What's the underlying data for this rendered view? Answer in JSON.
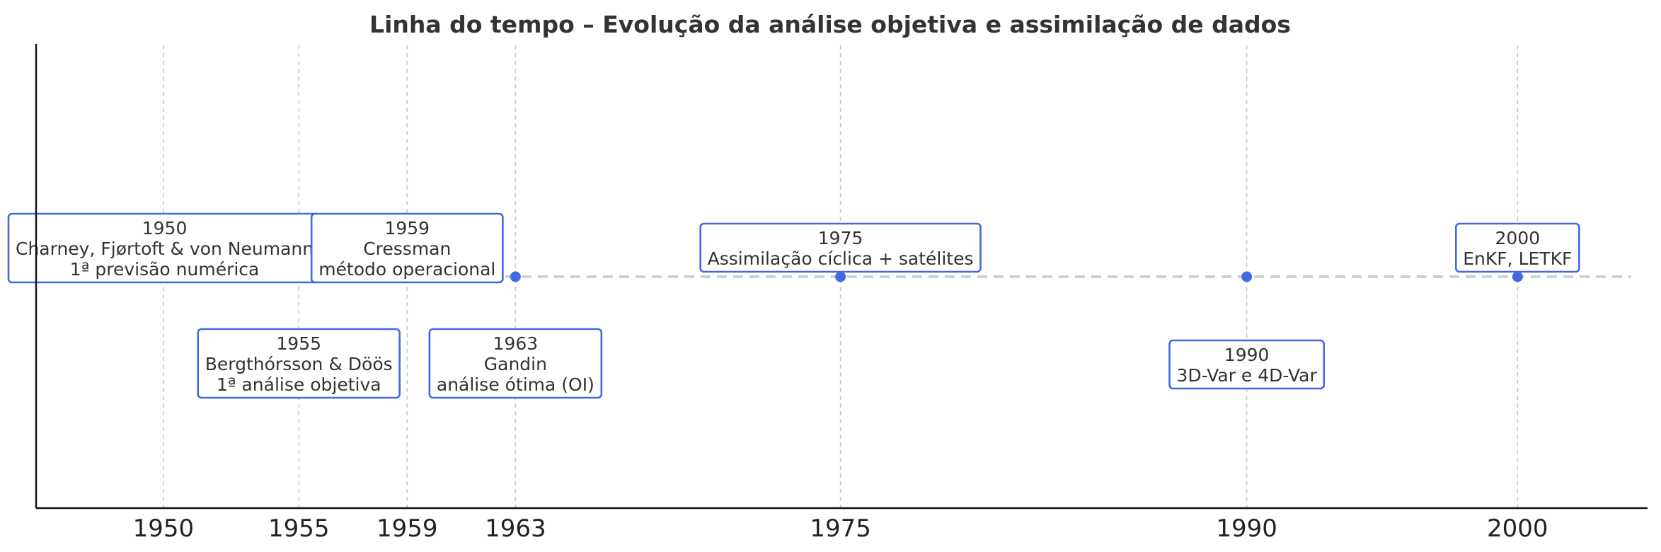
{
  "colors": {
    "accent": "#4169e1",
    "timeline": "#d0d0d0",
    "grid": "#c8c8c8",
    "text": "#333333"
  },
  "chart_data": {
    "type": "timeline",
    "title": "Linha do tempo – Evolução da análise objetiva e assimilação de dados",
    "xlabel": "",
    "ylabel": "",
    "xlim": [
      1945.3,
      2004.8
    ],
    "ticks": [
      "1950",
      "1955",
      "1959",
      "1963",
      "1975",
      "1990",
      "2000"
    ],
    "grid": true,
    "events": [
      {
        "year": 1950,
        "side": "above",
        "lines": [
          "1950",
          "Charney, Fjørtoft & von Neumann",
          "1ª previsão numérica"
        ]
      },
      {
        "year": 1955,
        "side": "below",
        "lines": [
          "1955",
          "Bergthórsson & Döös",
          "1ª análise objetiva"
        ]
      },
      {
        "year": 1959,
        "side": "above",
        "lines": [
          "1959",
          "Cressman",
          "método operacional"
        ]
      },
      {
        "year": 1963,
        "side": "below",
        "lines": [
          "1963",
          "Gandin",
          "análise ótima (OI)"
        ]
      },
      {
        "year": 1975,
        "side": "above",
        "lines": [
          "1975",
          "Assimilação cíclica + satélites"
        ]
      },
      {
        "year": 1990,
        "side": "below",
        "lines": [
          "1990",
          "3D-Var e 4D-Var"
        ]
      },
      {
        "year": 2000,
        "side": "above",
        "lines": [
          "2000",
          "EnKF, LETKF"
        ]
      }
    ]
  }
}
